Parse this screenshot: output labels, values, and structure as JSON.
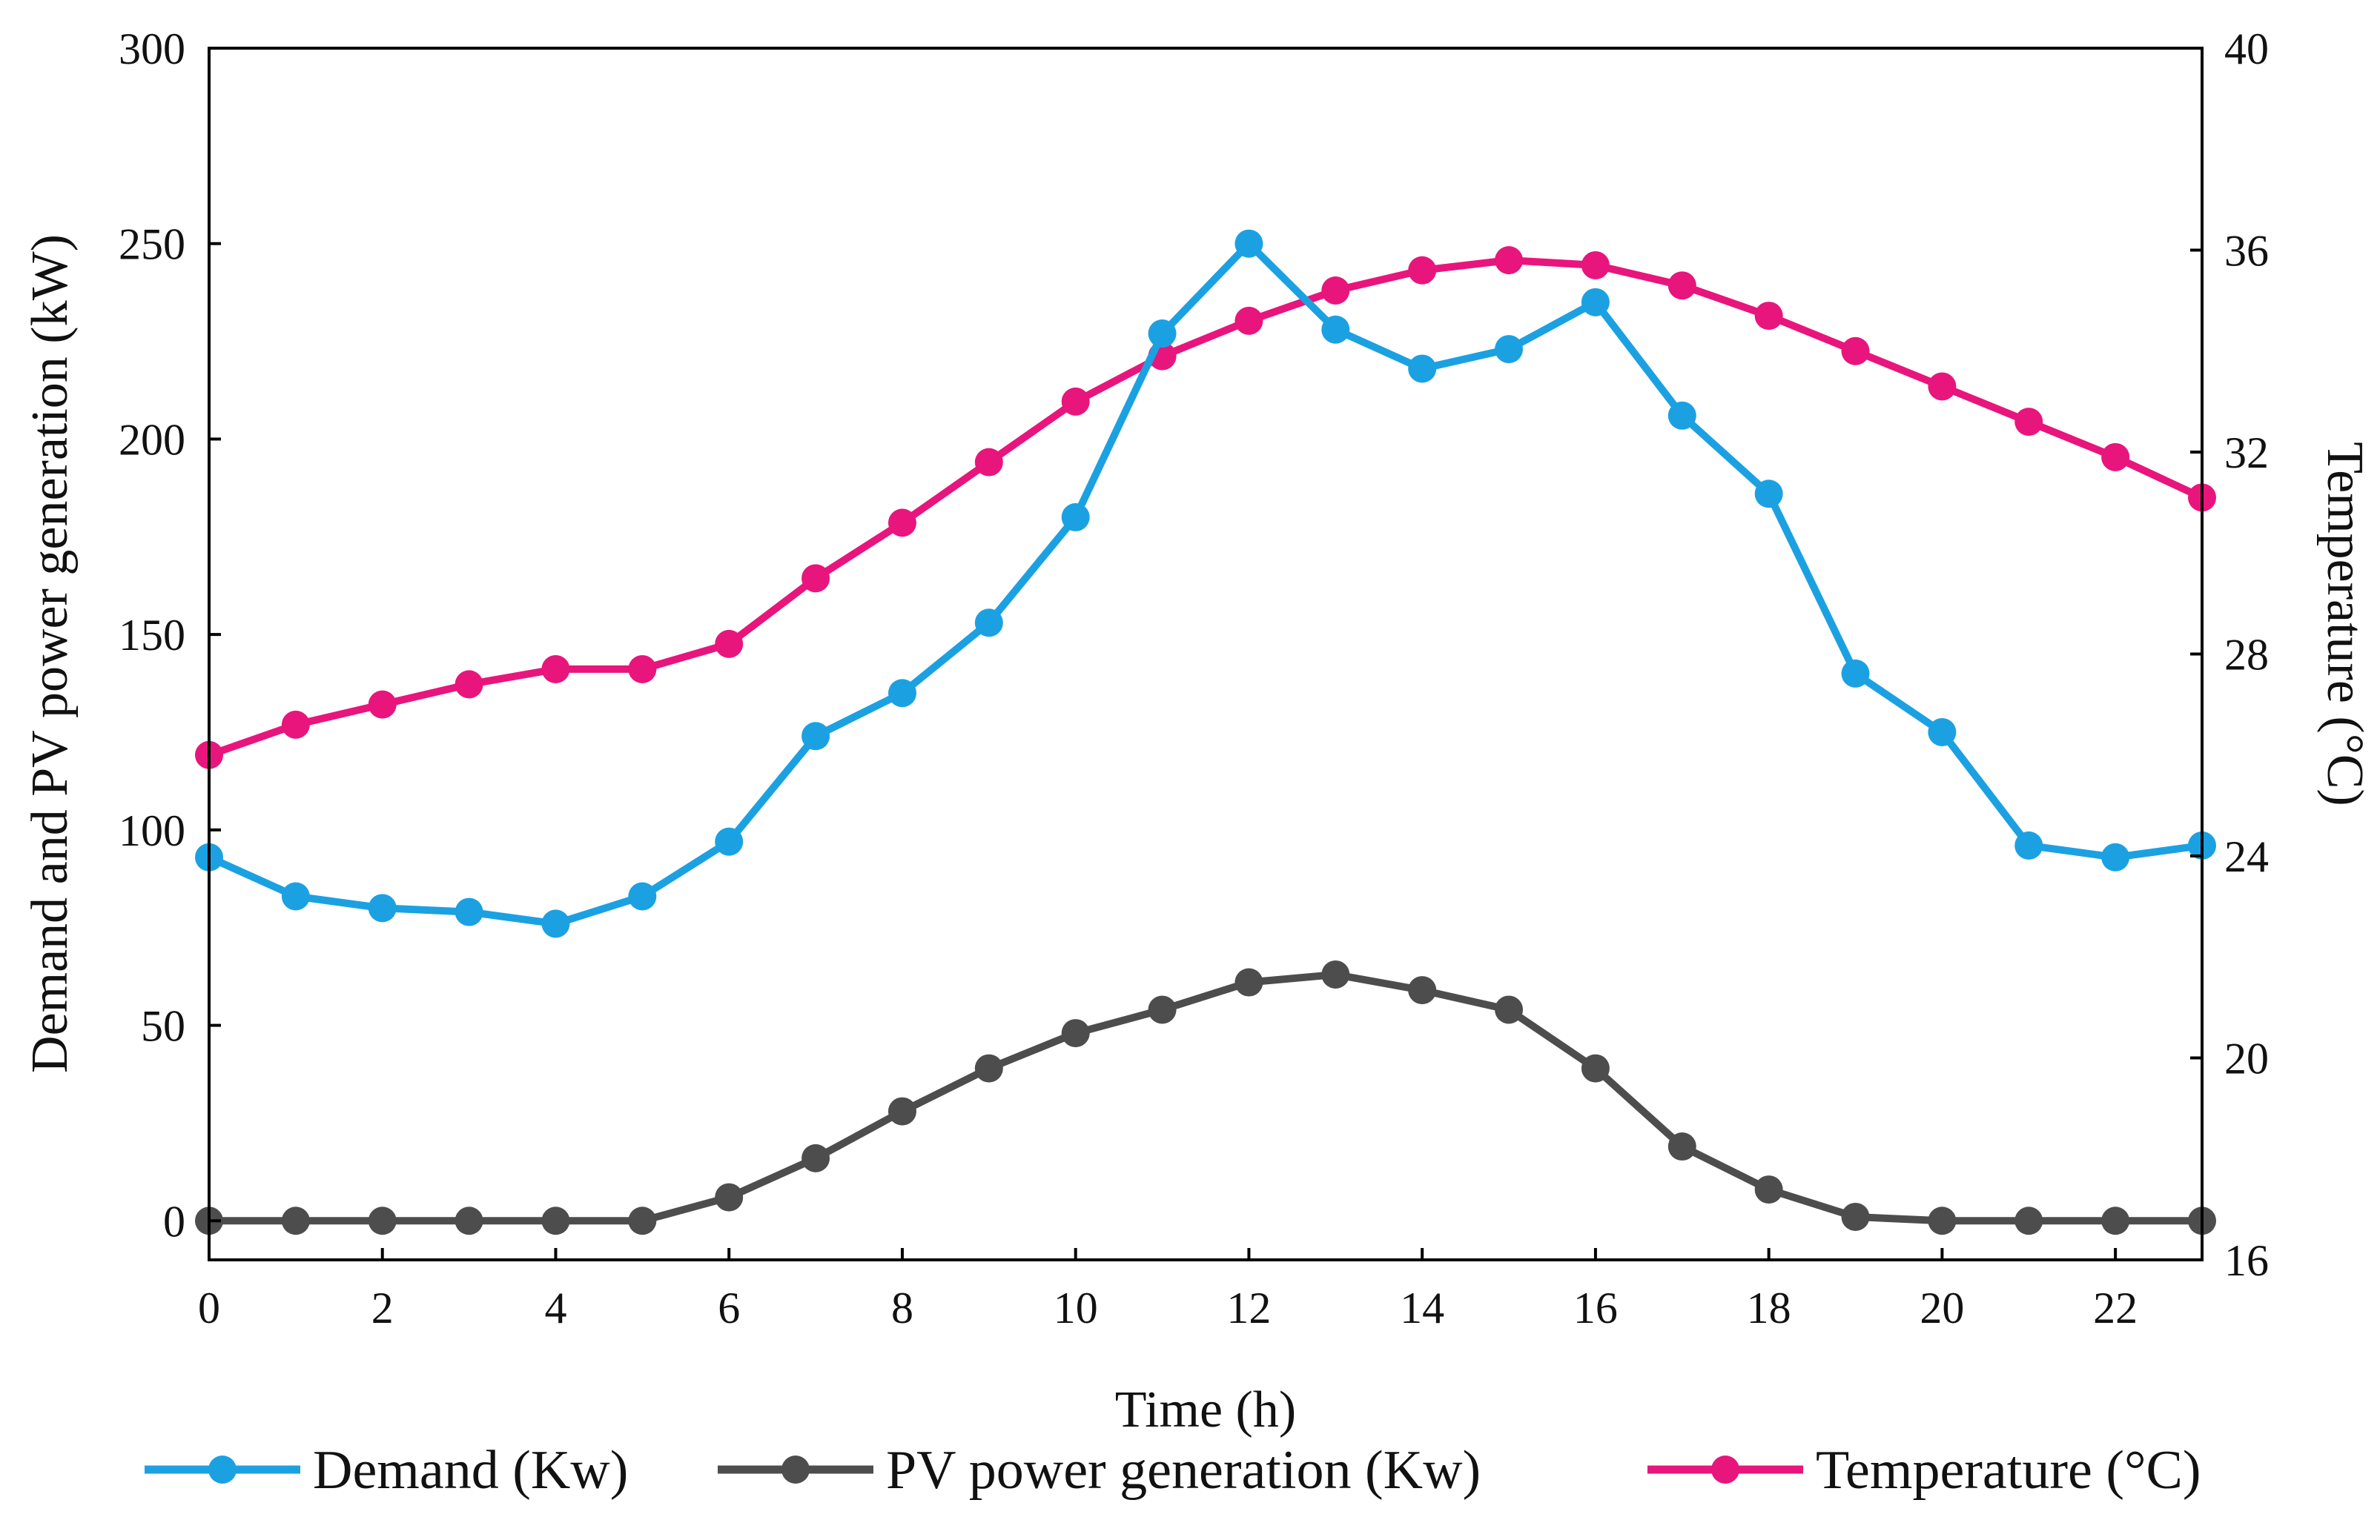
{
  "chart_data": {
    "type": "line",
    "x": [
      0,
      1,
      2,
      3,
      4,
      5,
      6,
      7,
      8,
      9,
      10,
      11,
      12,
      13,
      14,
      15,
      16,
      17,
      18,
      19,
      20,
      21,
      22,
      23
    ],
    "xlabel": "Time (h)",
    "ylabel": "Demand and PV power generation (kW)",
    "y2label": "Temperature (°C)",
    "xlim": [
      0,
      23
    ],
    "ylim": [
      -10,
      300
    ],
    "y2lim": [
      16,
      40
    ],
    "x_ticks": [
      "0",
      "2",
      "4",
      "6",
      "8",
      "10",
      "12",
      "14",
      "16",
      "18",
      "20",
      "22"
    ],
    "y_ticks": [
      "0",
      "50",
      "100",
      "150",
      "200",
      "250",
      "300"
    ],
    "y2_ticks": [
      "16",
      "20",
      "24",
      "28",
      "32",
      "36",
      "40"
    ],
    "grid": false,
    "legend_position": "bottom",
    "series": [
      {
        "name": "Demand (Kw)",
        "axis": "left",
        "color": "#1BA1E2",
        "values": [
          93,
          83,
          80,
          79,
          76,
          83,
          97,
          124,
          135,
          153,
          180,
          227,
          250,
          228,
          218,
          223,
          235,
          206,
          186,
          140,
          125,
          96,
          93,
          96
        ]
      },
      {
        "name": "PV power generation (Kw)",
        "axis": "left",
        "color": "#4D4D4D",
        "values": [
          0,
          0,
          0,
          0,
          0,
          0,
          6,
          16,
          28,
          39,
          48,
          54,
          61,
          63,
          59,
          54,
          39,
          19,
          8,
          1,
          0,
          0,
          0,
          0
        ]
      },
      {
        "name": "Temperature (°C)",
        "axis": "right",
        "color": "#E8157D",
        "values": [
          26,
          26.6,
          27,
          27.4,
          27.7,
          27.7,
          28.2,
          29.5,
          30.6,
          31.8,
          33,
          33.9,
          34.6,
          35.2,
          35.6,
          35.8,
          35.7,
          35.3,
          34.7,
          34,
          33.3,
          32.6,
          31.9,
          31.1
        ]
      }
    ]
  }
}
